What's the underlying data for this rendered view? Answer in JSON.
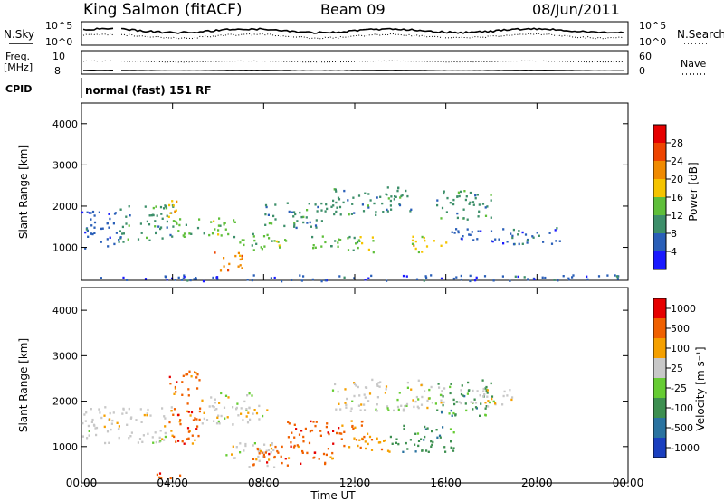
{
  "header": {
    "station": "King Salmon (fitACF)",
    "beam": "Beam 09",
    "date": "08/Jun/2011"
  },
  "status_panel": {
    "nsky_label": "N.Sky",
    "nsearch_label": "N.Search",
    "noise_ticks_left": [
      "10^5",
      "10^0"
    ],
    "noise_ticks_right": [
      "10^5",
      "10^0"
    ],
    "freq_label": "Freq.",
    "freq_unit": "[MHz]",
    "freq_ticks": [
      "10",
      "8"
    ],
    "nave_label": "Nave",
    "nave_ticks": [
      "60",
      "0"
    ],
    "cpid_label": "CPID",
    "cpid_value": "normal (fast) 151 RF"
  },
  "chart_data": [
    {
      "type": "heatmap",
      "panel": "power",
      "ylabel": "Slant Range [km]",
      "xlabel": "Time UT",
      "x_tick_labels": [
        "00:00",
        "04:00",
        "08:00",
        "12:00",
        "16:00",
        "20:00",
        "00:00"
      ],
      "x_ticks_hours": [
        0,
        4,
        8,
        12,
        16,
        20,
        24
      ],
      "y_tick_labels": [
        "1000",
        "2000",
        "3000",
        "4000"
      ],
      "y_ticks": [
        1000,
        2000,
        3000,
        4000
      ],
      "xlim_hours": [
        0,
        24
      ],
      "ylim": [
        200,
        4500
      ],
      "colorbar_label": "Power [dB]",
      "colorbar_ticks": [
        "4",
        "8",
        "12",
        "16",
        "20",
        "24",
        "28"
      ],
      "colorbar_colors": [
        "#1a1aff",
        "#2a5fb8",
        "#3d8f6a",
        "#5fbf3a",
        "#f5c400",
        "#f08a00",
        "#ee4400",
        "#e60000"
      ],
      "bands": [
        {
          "t0": 0.0,
          "t1": 1.6,
          "r0": 1000,
          "r1": 1950,
          "level": 1
        },
        {
          "t0": 1.6,
          "t1": 4.0,
          "r0": 1150,
          "r1": 2050,
          "level": 2
        },
        {
          "t0": 3.8,
          "t1": 4.4,
          "r0": 1700,
          "r1": 2200,
          "level": 4
        },
        {
          "t0": 4.0,
          "t1": 6.8,
          "r0": 1250,
          "r1": 1750,
          "level": 3
        },
        {
          "t0": 5.8,
          "t1": 7.2,
          "r0": 450,
          "r1": 900,
          "level": 5
        },
        {
          "t0": 6.8,
          "t1": 9.2,
          "r0": 950,
          "r1": 1350,
          "level": 3
        },
        {
          "t0": 8.0,
          "t1": 11.0,
          "r0": 1500,
          "r1": 2100,
          "level": 2
        },
        {
          "t0": 10.0,
          "t1": 13.0,
          "r0": 900,
          "r1": 1300,
          "level": 3
        },
        {
          "t0": 11.0,
          "t1": 14.5,
          "r0": 1800,
          "r1": 2500,
          "level": 2
        },
        {
          "t0": 14.5,
          "t1": 16.0,
          "r0": 900,
          "r1": 1300,
          "level": 4
        },
        {
          "t0": 15.5,
          "t1": 18.0,
          "r0": 1700,
          "r1": 2400,
          "level": 2
        },
        {
          "t0": 16.0,
          "t1": 21.0,
          "r0": 1100,
          "r1": 1500,
          "level": 1
        },
        {
          "t0": 0.0,
          "t1": 24.0,
          "r0": 200,
          "r1": 350,
          "level": 1
        }
      ]
    },
    {
      "type": "heatmap",
      "panel": "velocity",
      "ylabel": "Slant Range [km]",
      "xlabel": "Time UT",
      "x_tick_labels": [
        "00:00",
        "04:00",
        "08:00",
        "12:00",
        "16:00",
        "20:00",
        "00:00"
      ],
      "x_ticks_hours": [
        0,
        4,
        8,
        12,
        16,
        20,
        24
      ],
      "y_tick_labels": [
        "1000",
        "2000",
        "3000",
        "4000"
      ],
      "y_ticks": [
        1000,
        2000,
        3000,
        4000
      ],
      "xlim_hours": [
        0,
        24
      ],
      "ylim": [
        200,
        4500
      ],
      "colorbar_label": "Velocity [m s⁻¹]",
      "colorbar_ticks": [
        "1000",
        "500",
        "100",
        "25",
        "-25",
        "-100",
        "-500",
        "-1000"
      ],
      "colorbar_colors": [
        "#1a3fbf",
        "#2a73a0",
        "#3d8f50",
        "#66cc33",
        "#c8c8c8",
        "#f5a000",
        "#f06000",
        "#e60000"
      ],
      "bands": [
        {
          "t0": 0.0,
          "t1": 4.0,
          "r0": 1100,
          "r1": 1900,
          "level": 4
        },
        {
          "t0": 3.8,
          "t1": 5.2,
          "r0": 1000,
          "r1": 2700,
          "level": 6
        },
        {
          "t0": 5.0,
          "t1": 8.2,
          "r0": 1500,
          "r1": 2200,
          "level": 4
        },
        {
          "t0": 6.2,
          "t1": 8.5,
          "r0": 550,
          "r1": 1100,
          "level": 4
        },
        {
          "t0": 7.5,
          "t1": 11.0,
          "r0": 600,
          "r1": 1100,
          "level": 6
        },
        {
          "t0": 9.0,
          "t1": 12.5,
          "r0": 1000,
          "r1": 1600,
          "level": 6
        },
        {
          "t0": 12.0,
          "t1": 13.5,
          "r0": 900,
          "r1": 1400,
          "level": 5
        },
        {
          "t0": 11.0,
          "t1": 16.0,
          "r0": 1800,
          "r1": 2500,
          "level": 4
        },
        {
          "t0": 13.5,
          "t1": 16.5,
          "r0": 900,
          "r1": 1500,
          "level": 2
        },
        {
          "t0": 15.5,
          "t1": 18.0,
          "r0": 1700,
          "r1": 2500,
          "level": 2
        },
        {
          "t0": 16.5,
          "t1": 19.0,
          "r0": 1800,
          "r1": 2300,
          "level": 4
        },
        {
          "t0": 3.0,
          "t1": 4.5,
          "r0": 300,
          "r1": 450,
          "level": 6
        }
      ]
    }
  ]
}
